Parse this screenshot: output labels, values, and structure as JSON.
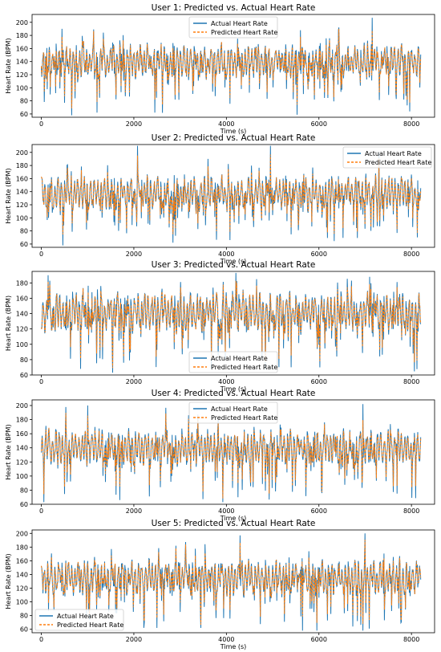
{
  "chart_data": [
    {
      "type": "line",
      "title": "User 1: Predicted vs. Actual Heart Rate",
      "xlabel": "Time (s)",
      "ylabel": "Heart Rate (BPM)",
      "xlim": [
        -200,
        8500
      ],
      "ylim": [
        55,
        212
      ],
      "xticks": [
        0,
        2000,
        4000,
        6000,
        8000
      ],
      "yticks": [
        60,
        80,
        100,
        120,
        140,
        160,
        180,
        200
      ],
      "x_range": [
        0,
        8200
      ],
      "legend": "top-center",
      "baseline": 140,
      "series": [
        {
          "name": "Actual Heart Rate",
          "color": "#1f77b4",
          "style": "solid"
        },
        {
          "name": "Predicted Heart Rate",
          "color": "#ff7f0e",
          "style": "dashed"
        }
      ],
      "spikes": [
        [
          450,
          190
        ],
        [
          1200,
          62
        ],
        [
          2450,
          62
        ],
        [
          5600,
          188
        ],
        [
          7150,
          207
        ]
      ],
      "seed": 11
    },
    {
      "type": "line",
      "title": "User 2: Predicted vs. Actual Heart Rate",
      "xlabel": "Time (s)",
      "ylabel": "Heart Rate (BPM)",
      "xlim": [
        -200,
        8500
      ],
      "ylim": [
        55,
        212
      ],
      "xticks": [
        0,
        2000,
        4000,
        6000,
        8000
      ],
      "yticks": [
        60,
        80,
        100,
        120,
        140,
        160,
        180,
        200
      ],
      "x_range": [
        0,
        8200
      ],
      "legend": "top-right",
      "baseline": 138,
      "series": [
        {
          "name": "Actual Heart Rate",
          "color": "#1f77b4",
          "style": "solid"
        },
        {
          "name": "Predicted Heart Rate",
          "color": "#ff7f0e",
          "style": "dashed"
        }
      ],
      "spikes": [
        [
          2080,
          210
        ],
        [
          2850,
          62
        ],
        [
          4950,
          210
        ],
        [
          3600,
          190
        ],
        [
          7300,
          200
        ]
      ],
      "seed": 23
    },
    {
      "type": "line",
      "title": "User 3: Predicted vs. Actual Heart Rate",
      "xlabel": "Time (s)",
      "ylabel": "Heart Rate (BPM)",
      "xlim": [
        -200,
        8500
      ],
      "ylim": [
        60,
        195
      ],
      "xticks": [
        0,
        2000,
        4000,
        6000,
        8000
      ],
      "yticks": [
        60,
        80,
        100,
        120,
        140,
        160,
        180
      ],
      "x_range": [
        0,
        8200
      ],
      "legend": "bottom-center",
      "baseline": 142,
      "series": [
        {
          "name": "Actual Heart Rate",
          "color": "#1f77b4",
          "style": "solid"
        },
        {
          "name": "Predicted Heart Rate",
          "color": "#ff7f0e",
          "style": "dashed"
        }
      ],
      "spikes": [
        [
          150,
          190
        ],
        [
          850,
          68
        ],
        [
          5400,
          70
        ],
        [
          7100,
          188
        ]
      ],
      "seed": 37
    },
    {
      "type": "line",
      "title": "User 4: Predicted vs. Actual Heart Rate",
      "xlabel": "Time (s)",
      "ylabel": "Heart Rate (BPM)",
      "xlim": [
        -200,
        8500
      ],
      "ylim": [
        60,
        208
      ],
      "xticks": [
        0,
        2000,
        4000,
        6000,
        8000
      ],
      "yticks": [
        60,
        80,
        100,
        120,
        140,
        160,
        180,
        200
      ],
      "x_range": [
        0,
        8200
      ],
      "legend": "top-center",
      "baseline": 140,
      "series": [
        {
          "name": "Actual Heart Rate",
          "color": "#1f77b4",
          "style": "solid"
        },
        {
          "name": "Predicted Heart Rate",
          "color": "#ff7f0e",
          "style": "dashed"
        }
      ],
      "spikes": [
        [
          1000,
          200
        ],
        [
          4250,
          70
        ],
        [
          6950,
          202
        ],
        [
          1700,
          66
        ]
      ],
      "seed": 41
    },
    {
      "type": "line",
      "title": "User 5: Predicted vs. Actual Heart Rate",
      "xlabel": "Time (s)",
      "ylabel": "Heart Rate (BPM)",
      "xlim": [
        -200,
        8500
      ],
      "ylim": [
        55,
        205
      ],
      "xticks": [
        0,
        2000,
        4000,
        6000,
        8000
      ],
      "yticks": [
        60,
        80,
        100,
        120,
        140,
        160,
        180,
        200
      ],
      "x_range": [
        0,
        8200
      ],
      "legend": "bottom-left",
      "baseline": 135,
      "series": [
        {
          "name": "Actual Heart Rate",
          "color": "#1f77b4",
          "style": "solid"
        },
        {
          "name": "Predicted Heart Rate",
          "color": "#ff7f0e",
          "style": "dashed"
        }
      ],
      "spikes": [
        [
          4300,
          197
        ],
        [
          7000,
          200
        ],
        [
          5650,
          58
        ],
        [
          2500,
          62
        ]
      ],
      "seed": 53
    }
  ]
}
